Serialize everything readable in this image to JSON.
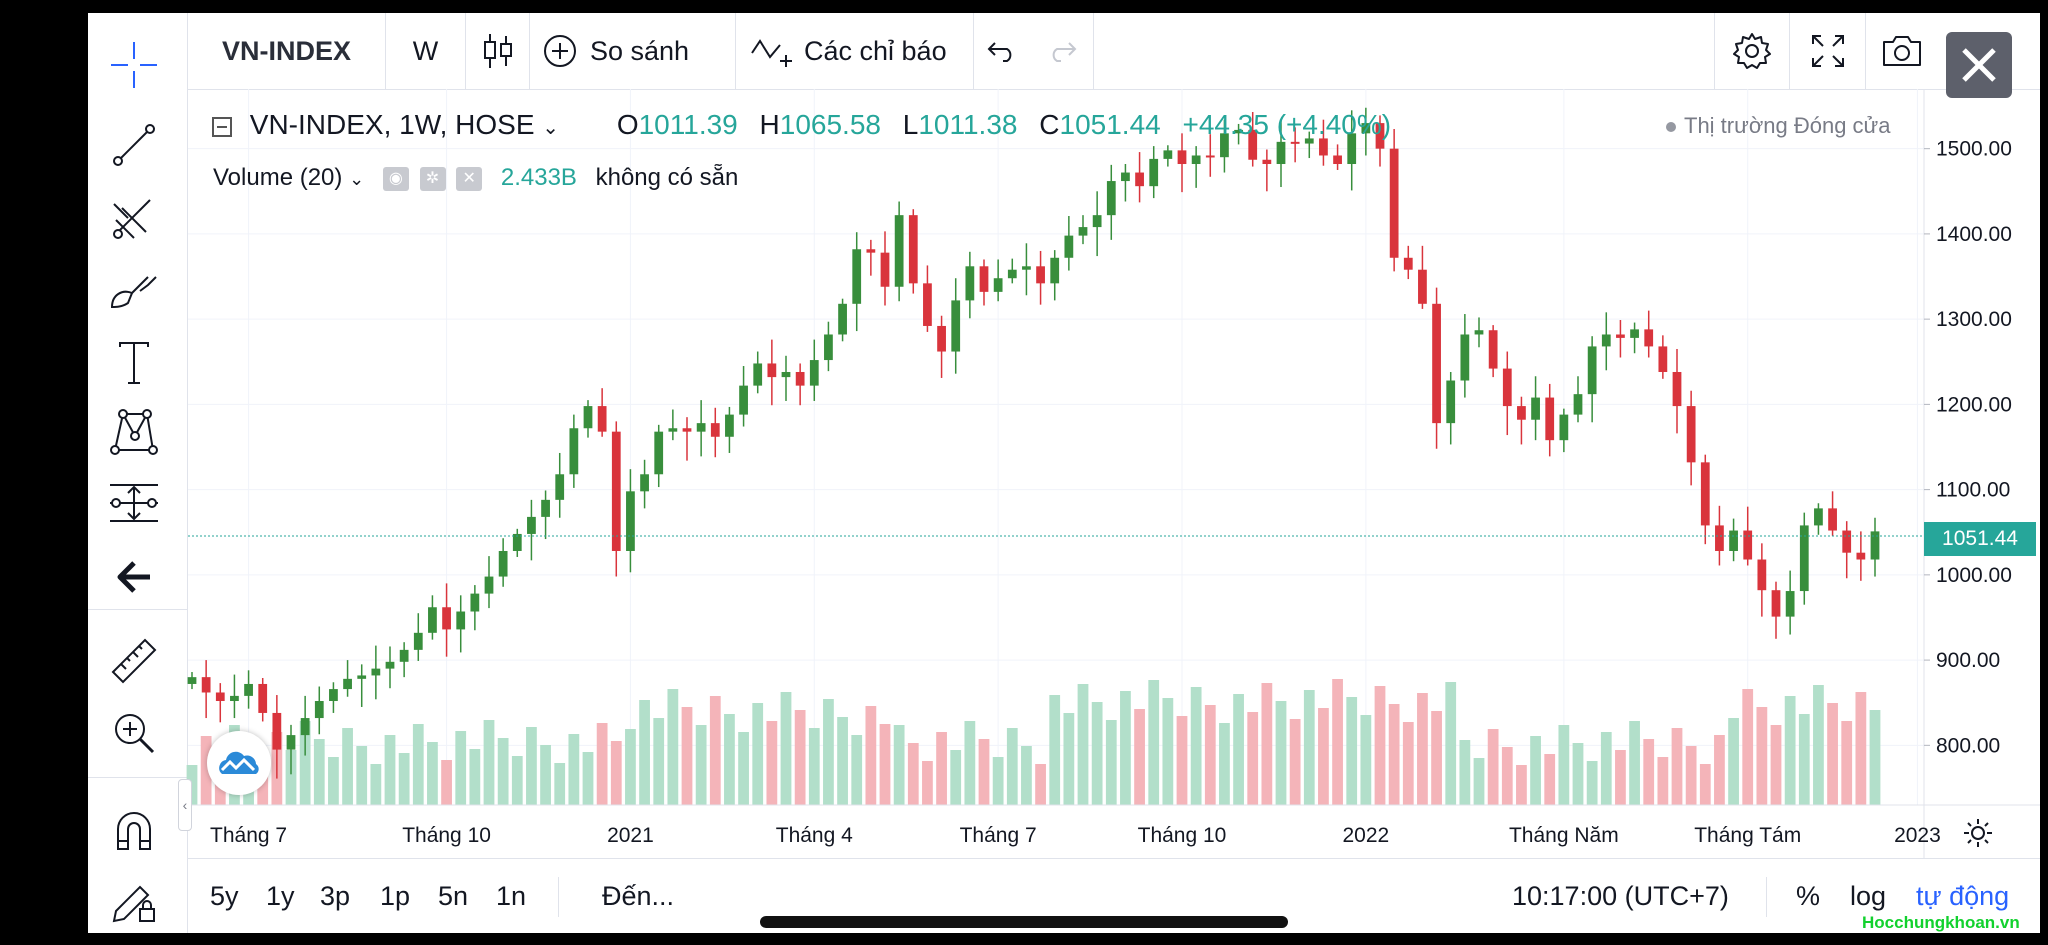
{
  "toolbar": {
    "symbol": "VN-INDEX",
    "interval": "W",
    "compare_label": "So sánh",
    "indicators_label": "Các chỉ báo"
  },
  "legend": {
    "title": "VN-INDEX, 1W, HOSE",
    "open_label": "O",
    "open": "1011.39",
    "high_label": "H",
    "high": "1065.58",
    "low_label": "L",
    "low": "1011.38",
    "close_label": "C",
    "close": "1051.44",
    "change": "+44.35 (+4.40%)",
    "market_status": "Thị trường Đóng cửa",
    "volume_title": "Volume (20)",
    "volume_value": "2.433B",
    "volume_note": "không có sẵn"
  },
  "chart_data": {
    "type": "candlestick",
    "title": "VN-INDEX, 1W, HOSE",
    "price_axis_ticks": [
      "1500.00",
      "1400.00",
      "1300.00",
      "1200.00",
      "1100.00",
      "1000.00",
      "900.00",
      "800.00"
    ],
    "time_axis_labels": [
      "Tháng 7",
      "Tháng 10",
      "2021",
      "Tháng 4",
      "Tháng 7",
      "Tháng 10",
      "2022",
      "Tháng Năm",
      "Tháng Tám",
      "2023"
    ],
    "ylim": [
      730,
      1570
    ],
    "last_price": "1051.44",
    "weekly_close_approx": [
      880,
      862,
      852,
      858,
      872,
      838,
      795,
      812,
      832,
      852,
      866,
      878,
      882,
      890,
      898,
      912,
      932,
      962,
      936,
      957,
      978,
      998,
      1028,
      1048,
      1068,
      1088,
      1118,
      1172,
      1198,
      1168,
      1028,
      1098,
      1118,
      1168,
      1172,
      1168,
      1178,
      1162,
      1188,
      1222,
      1248,
      1232,
      1238,
      1222,
      1252,
      1282,
      1318,
      1382,
      1378,
      1338,
      1422,
      1342,
      1292,
      1262,
      1322,
      1362,
      1332,
      1348,
      1358,
      1362,
      1342,
      1372,
      1398,
      1408,
      1422,
      1462,
      1472,
      1456,
      1488,
      1498,
      1482,
      1492,
      1490,
      1518,
      1522,
      1487,
      1482,
      1508,
      1506,
      1512,
      1492,
      1482,
      1518,
      1530,
      1500,
      1372,
      1358,
      1318,
      1178,
      1228,
      1282,
      1287,
      1242,
      1198,
      1182,
      1208,
      1158,
      1188,
      1212,
      1268,
      1282,
      1278,
      1288,
      1268,
      1238,
      1198,
      1132,
      1058,
      1028,
      1052,
      1018,
      982,
      951,
      981,
      1058,
      1078,
      1052,
      1026,
      1018,
      1051
    ],
    "volume_bars_approx": 126
  },
  "bottombar": {
    "ranges": [
      "5y",
      "1y",
      "3p",
      "1p",
      "5n",
      "1n"
    ],
    "goto_label": "Đến...",
    "time": "10:17:00 (UTC+7)",
    "percent": "%",
    "log": "log",
    "auto": "tự động"
  },
  "watermark": "Hocchungkhoan.vn",
  "colors": {
    "up": "#26a69a",
    "up_candle": "#388e3c",
    "down": "#d9343c",
    "vol_up": "#b2dfca",
    "vol_down": "#f4b4b9",
    "price_line": "#26a69a"
  }
}
